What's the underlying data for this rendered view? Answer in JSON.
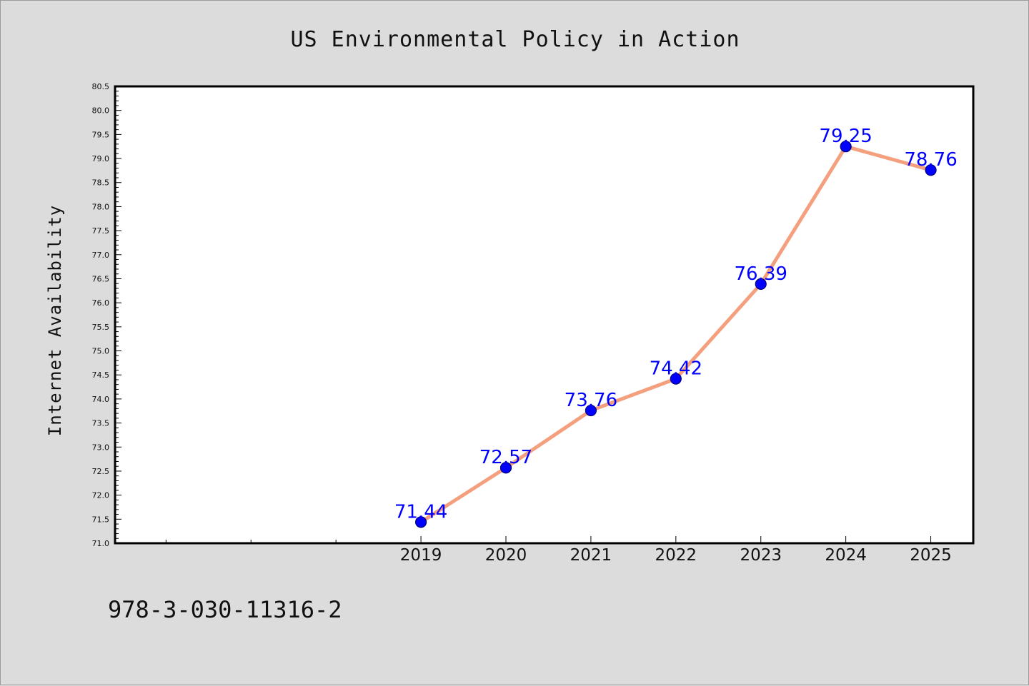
{
  "chart_data": {
    "type": "line",
    "title": "US Environmental Policy in Action",
    "xlabel": "",
    "ylabel": "Internet Availability",
    "x": [
      2019,
      2020,
      2021,
      2022,
      2023,
      2024,
      2025
    ],
    "x_tick_labels": [
      "2019",
      "2020",
      "2021",
      "2022",
      "2023",
      "2024",
      "2025"
    ],
    "xlim": [
      2015.4,
      2025.5
    ],
    "series": [
      {
        "values": [
          71.44,
          72.57,
          73.76,
          74.42,
          76.39,
          79.25,
          78.76
        ],
        "labels": [
          "71.44",
          "72.57",
          "73.76",
          "74.42",
          "76.39",
          "79.25",
          "78.76"
        ]
      }
    ],
    "ylim": [
      71.0,
      80.5
    ],
    "y_tick_values": [
      71.0,
      71.5,
      72.0,
      72.5,
      73.0,
      73.5,
      74.0,
      74.5,
      75.0,
      75.5,
      76.0,
      76.5,
      77.0,
      77.5,
      78.0,
      78.5,
      79.0,
      79.5,
      80.0,
      80.5
    ],
    "y_tick_labels": [
      "71.0",
      "71.5",
      "72.0",
      "72.5",
      "73.0",
      "73.5",
      "74.0",
      "74.5",
      "75.0",
      "75.5",
      "76.0",
      "76.5",
      "77.0",
      "77.5",
      "78.0",
      "78.5",
      "79.0",
      "79.5",
      "80.0",
      "80.5"
    ],
    "grid": false,
    "legend": "none"
  },
  "footer": {
    "text": "978-3-030-11316-2"
  },
  "colors": {
    "background": "#dcdcdc",
    "plot_background": "#ffffff",
    "line": "#f4a07f",
    "marker_fill": "#0000ff",
    "marker_edge": "#00007a",
    "data_label": "#0000ff"
  }
}
